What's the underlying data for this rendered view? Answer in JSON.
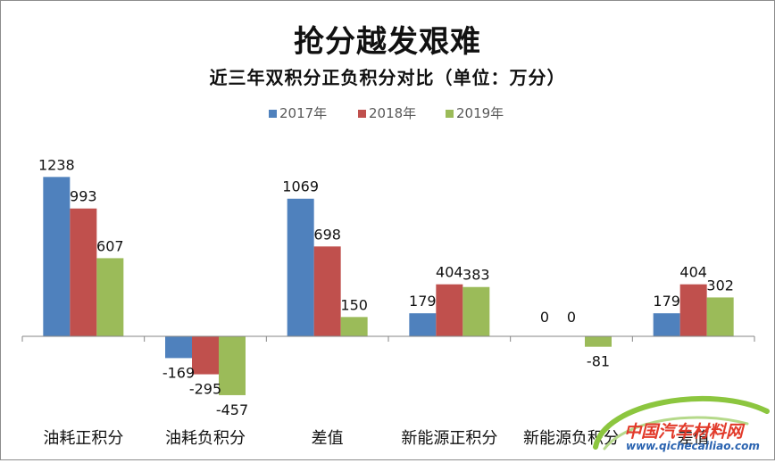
{
  "chart_data": {
    "type": "bar",
    "title": "抢分越发艰难",
    "subtitle": "近三年双积分正负积分对比（单位：万分）",
    "categories": [
      "油耗正积分",
      "油耗负积分",
      "差值",
      "新能源正积分",
      "新能源负积分",
      "差值"
    ],
    "series": [
      {
        "name": "2017年",
        "color": "#4f81bd",
        "values": [
          1238,
          -169,
          1069,
          179,
          0,
          179
        ]
      },
      {
        "name": "2018年",
        "color": "#c0504d",
        "values": [
          993,
          -295,
          698,
          404,
          0,
          404
        ]
      },
      {
        "name": "2019年",
        "color": "#9bbb59",
        "values": [
          607,
          -457,
          150,
          383,
          -81,
          302
        ]
      }
    ],
    "legend_position": "top",
    "grid": false
  },
  "watermark": {
    "text": "中国汽车材料网",
    "url": "www.qichecailiao.com",
    "colors": {
      "text": "#e23a2a",
      "url": "#2a63b0",
      "swoosh": "#8cc63f"
    }
  }
}
